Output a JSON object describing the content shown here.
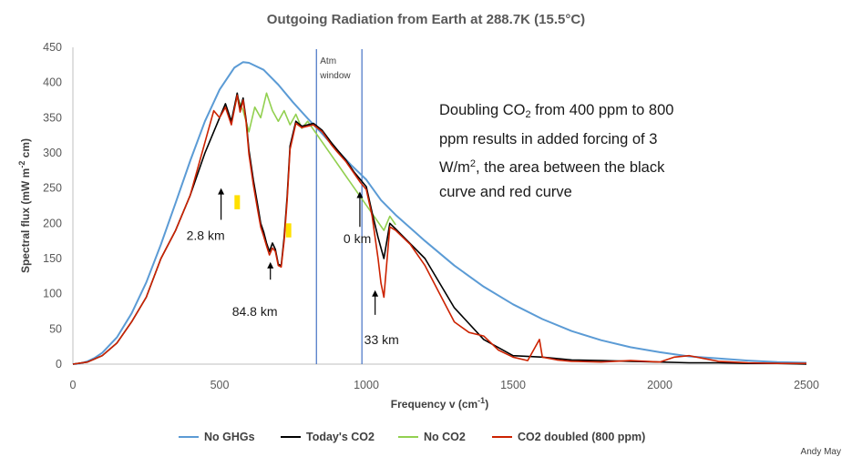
{
  "chart_data": {
    "type": "line",
    "title": "Outgoing Radiation from Earth at 288.7K (15.5°C)",
    "xlabel": "Frequency v (cm",
    "xlabel_sup": "-1",
    "xlabel_tail": ")",
    "ylabel_parts": [
      "Spectral flux (mW m",
      "-2",
      " cm)"
    ],
    "xlim": [
      0,
      2500
    ],
    "ylim": [
      0,
      450
    ],
    "x_ticks": [
      0,
      500,
      1000,
      1500,
      2000,
      2500
    ],
    "y_ticks": [
      0,
      50,
      100,
      150,
      200,
      250,
      300,
      350,
      400,
      450
    ],
    "grid": false,
    "legend_position": "bottom",
    "colors": {
      "no_ghgs": "#5b9bd5",
      "todays_co2": "#000000",
      "no_co2": "#92d050",
      "co2_doubled": "#cc2200",
      "highlight": "#ffe000",
      "vline": "#4472c4"
    },
    "series": [
      {
        "name": "No GHGs",
        "key": "no_ghgs",
        "x": [
          0,
          25,
          50,
          75,
          100,
          150,
          200,
          250,
          300,
          350,
          400,
          450,
          500,
          550,
          580,
          600,
          650,
          700,
          750,
          800,
          850,
          900,
          950,
          1000,
          1050,
          1100,
          1200,
          1300,
          1400,
          1500,
          1600,
          1700,
          1800,
          1900,
          2000,
          2100,
          2200,
          2300,
          2400,
          2500
        ],
        "values": [
          0,
          1,
          4,
          9,
          16,
          38,
          72,
          116,
          170,
          229,
          289,
          345,
          390,
          421,
          429,
          428,
          418,
          397,
          372,
          349,
          327,
          304,
          282,
          262,
          233,
          212,
          175,
          140,
          110,
          85,
          64,
          47,
          34,
          24,
          17,
          11,
          8,
          5,
          3,
          2
        ]
      },
      {
        "name": "Today's CO2",
        "key": "todays_co2",
        "x": [
          0,
          50,
          100,
          150,
          200,
          250,
          300,
          350,
          400,
          450,
          500,
          520,
          540,
          560,
          570,
          580,
          590,
          600,
          615,
          630,
          640,
          650,
          660,
          670,
          680,
          690,
          700,
          710,
          720,
          730,
          740,
          760,
          780,
          800,
          820,
          850,
          880,
          900,
          930,
          960,
          980,
          1000,
          1020,
          1040,
          1060,
          1080,
          1100,
          1200,
          1300,
          1400,
          1500,
          1600,
          1700,
          1800,
          1900,
          2000,
          2100,
          2200,
          2300,
          2400,
          2500
        ],
        "values": [
          0,
          3,
          12,
          30,
          60,
          95,
          150,
          190,
          240,
          300,
          350,
          370,
          345,
          385,
          362,
          378,
          348,
          304,
          262,
          225,
          200,
          188,
          172,
          160,
          172,
          163,
          142,
          140,
          180,
          238,
          310,
          345,
          338,
          340,
          342,
          332,
          315,
          305,
          290,
          272,
          262,
          252,
          215,
          180,
          150,
          200,
          192,
          150,
          80,
          35,
          12,
          10,
          6,
          5,
          4,
          3,
          2,
          2,
          1,
          1,
          0
        ]
      },
      {
        "name": "No CO2",
        "key": "no_co2",
        "x": [
          540,
          560,
          580,
          600,
          620,
          640,
          660,
          680,
          700,
          720,
          740,
          760,
          780,
          800,
          1060,
          1080,
          1100
        ],
        "values": [
          345,
          380,
          360,
          330,
          365,
          350,
          385,
          360,
          345,
          360,
          340,
          355,
          335,
          345,
          190,
          210,
          198
        ]
      },
      {
        "name": "CO2 doubled (800 ppm)",
        "key": "co2_doubled",
        "x": [
          0,
          50,
          100,
          150,
          200,
          250,
          300,
          350,
          400,
          420,
          440,
          460,
          480,
          500,
          520,
          540,
          560,
          570,
          580,
          590,
          600,
          615,
          630,
          640,
          650,
          660,
          670,
          680,
          690,
          700,
          710,
          720,
          730,
          740,
          760,
          780,
          800,
          820,
          850,
          880,
          900,
          930,
          960,
          980,
          1000,
          1020,
          1040,
          1050,
          1060,
          1080,
          1100,
          1150,
          1200,
          1250,
          1300,
          1350,
          1400,
          1450,
          1500,
          1550,
          1590,
          1600,
          1650,
          1700,
          1800,
          1900,
          2000,
          2050,
          2100,
          2150,
          2200,
          2300,
          2400,
          2500
        ],
        "values": [
          0,
          3,
          12,
          30,
          60,
          95,
          150,
          190,
          240,
          270,
          300,
          330,
          360,
          350,
          365,
          340,
          382,
          358,
          375,
          345,
          298,
          255,
          218,
          195,
          182,
          168,
          155,
          165,
          160,
          140,
          138,
          175,
          232,
          305,
          342,
          336,
          338,
          340,
          330,
          312,
          302,
          288,
          270,
          258,
          248,
          210,
          150,
          115,
          95,
          195,
          190,
          170,
          140,
          100,
          60,
          45,
          40,
          20,
          10,
          5,
          35,
          10,
          6,
          4,
          3,
          5,
          3,
          10,
          12,
          8,
          4,
          2,
          1,
          1
        ]
      }
    ],
    "annotations": [
      {
        "text": "2.8 km",
        "x": 505,
        "y": 173
      },
      {
        "text": "84.8 km",
        "x": 673,
        "y": 68
      },
      {
        "text": "0 km",
        "x": 978,
        "y": 163
      },
      {
        "text": "33 km",
        "x": 1030,
        "y": 28
      },
      {
        "text": "Atm",
        "x": 830,
        "y": 430
      },
      {
        "text": "window",
        "x": 830,
        "y": 414
      }
    ],
    "vlines": [
      830,
      985
    ]
  },
  "note": {
    "line1a": "Doubling CO",
    "line1sub": "2",
    "line1b": " from 400 ppm to 800",
    "line2": "ppm results in added forcing of  3",
    "line3a": "W/m",
    "line3sup": "2",
    "line3b": ", the area between the black",
    "line4": "curve and red curve"
  },
  "credit": "Andy May"
}
